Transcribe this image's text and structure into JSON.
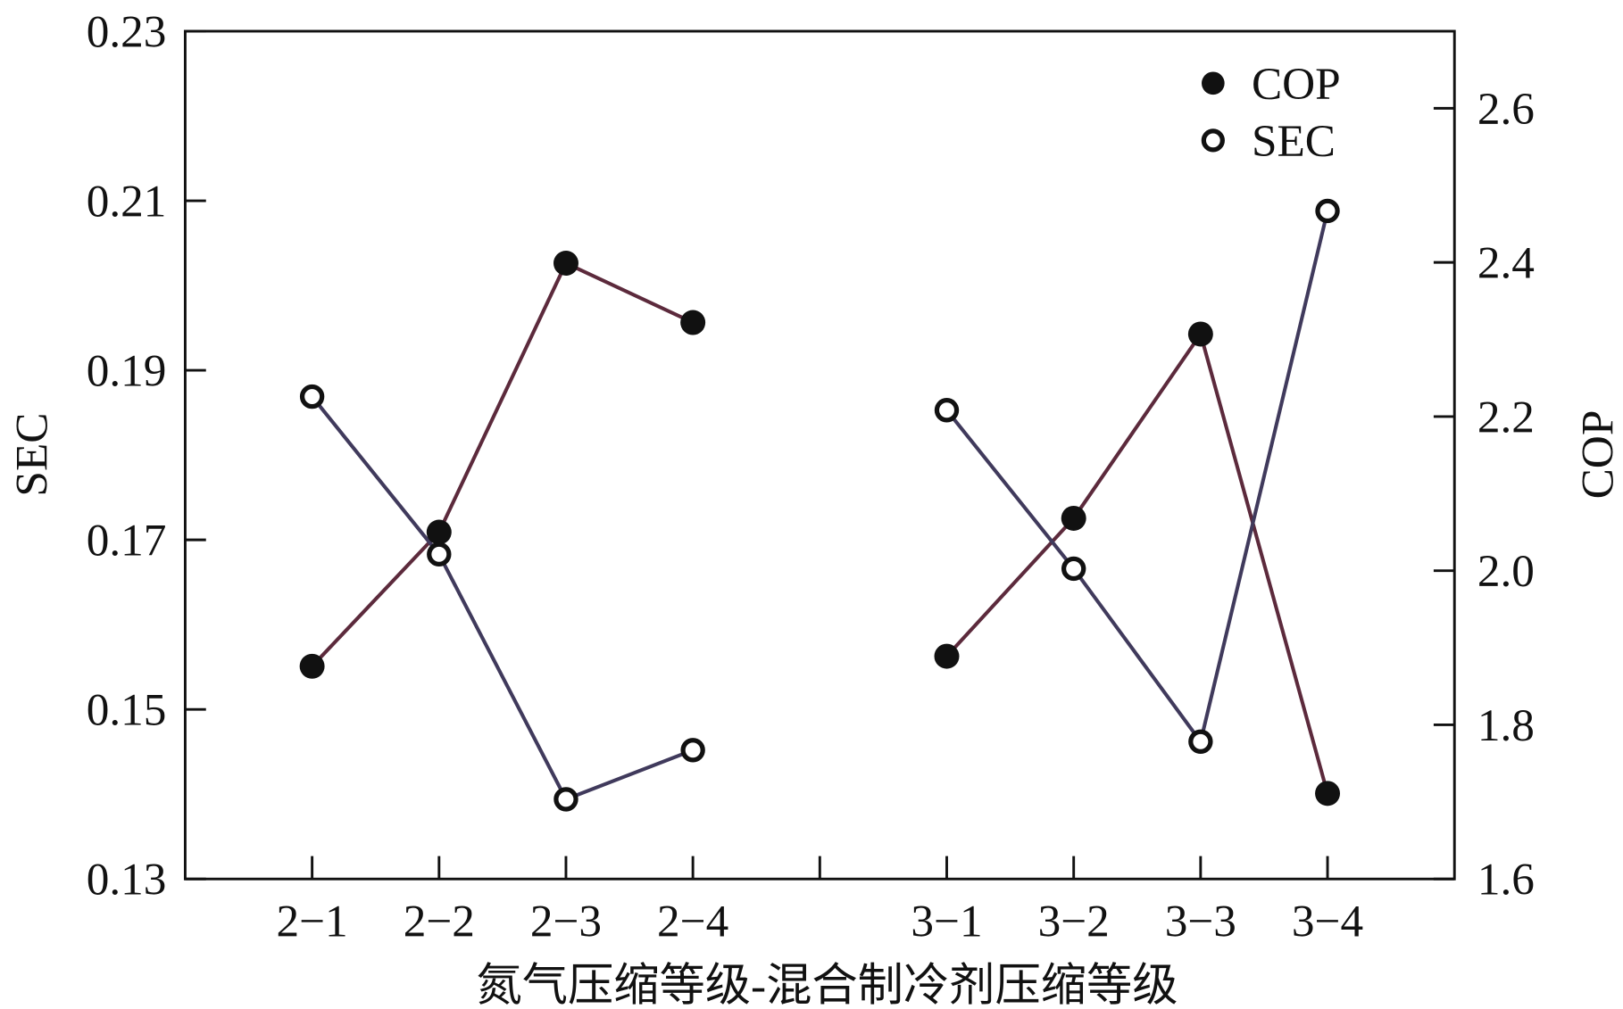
{
  "chart_data": {
    "type": "line",
    "xlabel": "氮气压缩等级-混合制冷剂压缩等级",
    "ylabel_left": "SEC",
    "ylabel_right": "COP",
    "categories": [
      "2-1",
      "2-2",
      "2-3",
      "2-4",
      "3-1",
      "3-2",
      "3-3",
      "3-4"
    ],
    "groups": [
      [
        "2-1",
        "2-2",
        "2-3",
        "2-4"
      ],
      [
        "3-1",
        "3-2",
        "3-3",
        "3-4"
      ]
    ],
    "y_left": {
      "lim": [
        0.13,
        0.23
      ],
      "ticks": [
        "0.13",
        "0.15",
        "0.17",
        "0.19",
        "0.21",
        "0.23"
      ]
    },
    "y_right": {
      "lim": [
        1.6,
        2.7
      ],
      "ticks": [
        "1.6",
        "1.8",
        "2.0",
        "2.2",
        "2.4",
        "2.6"
      ]
    },
    "grid": false,
    "legend_position": "top-right",
    "series": [
      {
        "name": "COP",
        "axis": "right",
        "marker": "filled-circle",
        "line_color": "#5c2a3c",
        "values": [
          1.876,
          2.05,
          2.399,
          2.322,
          1.889,
          2.068,
          2.307,
          1.711
        ]
      },
      {
        "name": "SEC",
        "axis": "left",
        "marker": "open-circle",
        "line_color": "#403a5c",
        "values": [
          0.1869,
          0.1683,
          0.1394,
          0.1452,
          0.1853,
          0.1666,
          0.1462,
          0.2088
        ]
      }
    ]
  }
}
